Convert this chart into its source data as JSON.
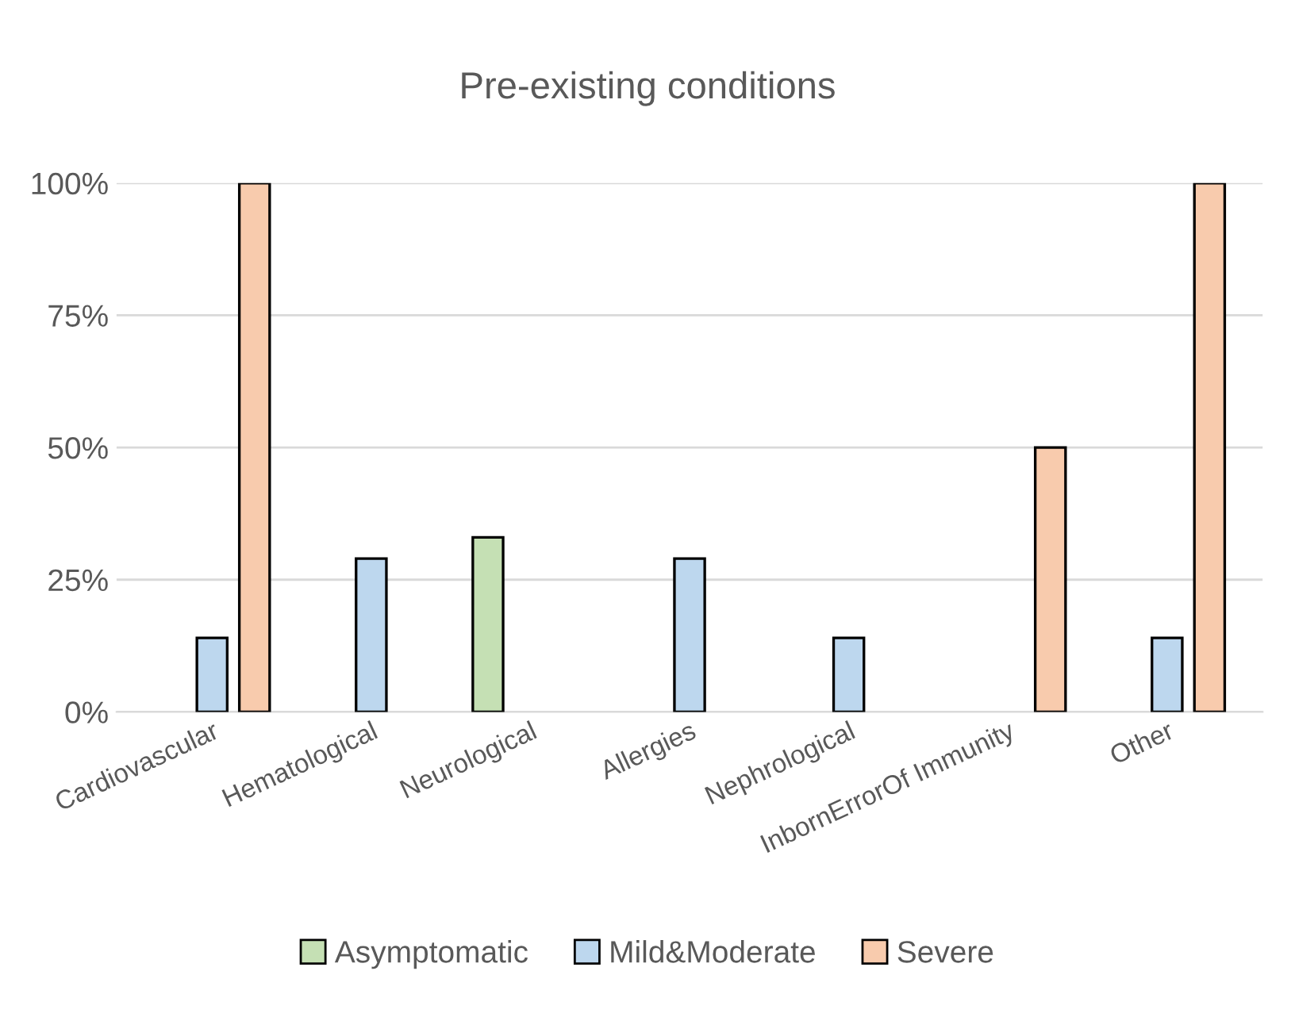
{
  "chart_data": {
    "type": "bar",
    "title": "Pre-existing conditions",
    "categories": [
      "Cardiovascular",
      "Hematological",
      "Neurological",
      "Allergies",
      "Nephrological",
      "InbornErrorOf Immunity",
      "Other"
    ],
    "series": [
      {
        "name": "Asymptomatic",
        "color": "#c5e0b4",
        "values": [
          null,
          null,
          33,
          null,
          null,
          null,
          null
        ]
      },
      {
        "name": "Mild&Moderate",
        "color": "#bdd7ee",
        "values": [
          14,
          29,
          null,
          29,
          14,
          null,
          14
        ]
      },
      {
        "name": "Severe",
        "color": "#f8cbad",
        "values": [
          100,
          null,
          null,
          null,
          null,
          50,
          100
        ]
      }
    ],
    "ylim": [
      0,
      100
    ],
    "yticks": [
      {
        "value": 0,
        "label": "0%"
      },
      {
        "value": 25,
        "label": "25%"
      },
      {
        "value": 50,
        "label": "50%"
      },
      {
        "value": 75,
        "label": "75%"
      },
      {
        "value": 100,
        "label": "100%"
      }
    ],
    "grid": "y",
    "legend": "bottom"
  }
}
